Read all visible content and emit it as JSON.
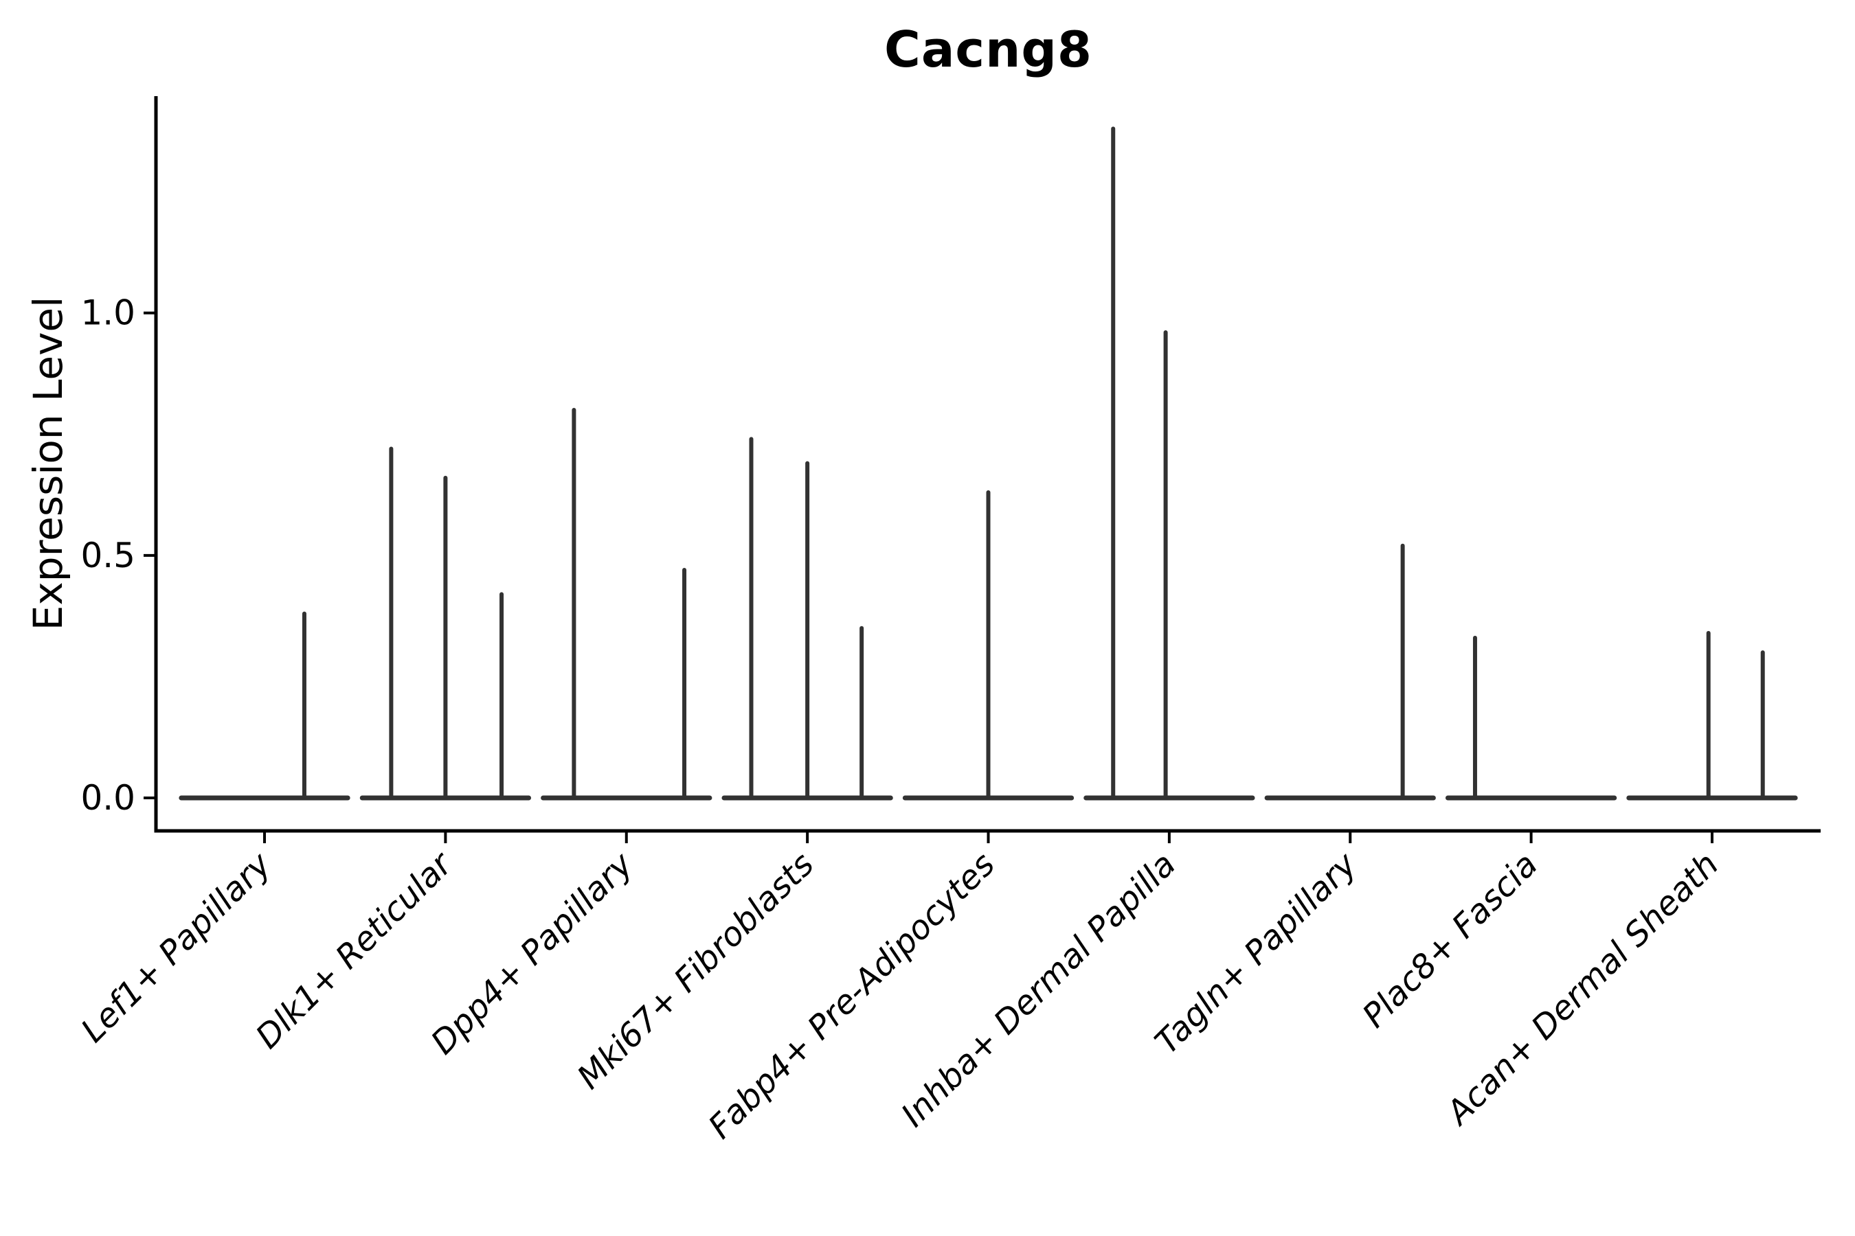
{
  "figure": {
    "title": "Cacng8",
    "ylabel": "Expression Level"
  },
  "chart_data": {
    "type": "violin",
    "title": "Cacng8",
    "xlabel": "",
    "ylabel": "Expression Level",
    "grid": false,
    "legend": null,
    "background": "#ffffff",
    "ylim": [
      -0.068,
      1.447
    ],
    "xlim": [
      0.4,
      9.6
    ],
    "yticks": [
      "0.0",
      "0.5",
      "1.0"
    ],
    "ytick_values": [
      0.0,
      0.5,
      1.0
    ],
    "categories": [
      "Lef1+ Papillary",
      "Dlk1+ Reticular",
      "Dpp4+ Papillary",
      "Mki67+ Fibroblasts",
      "Fabp4+ Pre-Adipocytes",
      "Inhba+ Dermal Papilla",
      "Tagln+ Papillary",
      "Plac8+ Fascia",
      "Acan+ Dermal Sheath"
    ],
    "violin_description": "Seurat-style violin plot; most cells at 0 so each violin collapses to a flat baseline at 0 plus thin needles up to the max expression value. offset is in category-width units from the category center.",
    "baseline_halfwidth": 0.46,
    "violins": [
      {
        "category": "Lef1+ Papillary",
        "needles": [
          {
            "offset": 0.22,
            "max": 0.38
          }
        ]
      },
      {
        "category": "Dlk1+ Reticular",
        "needles": [
          {
            "offset": -0.3,
            "max": 0.72
          },
          {
            "offset": 0.0,
            "max": 0.66
          },
          {
            "offset": 0.31,
            "max": 0.42
          }
        ]
      },
      {
        "category": "Dpp4+ Papillary",
        "needles": [
          {
            "offset": -0.29,
            "max": 0.8
          },
          {
            "offset": 0.32,
            "max": 0.47
          }
        ]
      },
      {
        "category": "Mki67+ Fibroblasts",
        "needles": [
          {
            "offset": -0.31,
            "max": 0.74
          },
          {
            "offset": 0.0,
            "max": 0.69
          },
          {
            "offset": 0.3,
            "max": 0.35
          }
        ]
      },
      {
        "category": "Fabp4+ Pre-Adipocytes",
        "needles": [
          {
            "offset": 0.0,
            "max": 0.63
          }
        ]
      },
      {
        "category": "Inhba+ Dermal Papilla",
        "needles": [
          {
            "offset": -0.31,
            "max": 1.38
          },
          {
            "offset": -0.02,
            "max": 0.96
          }
        ]
      },
      {
        "category": "Tagln+ Papillary",
        "needles": [
          {
            "offset": 0.29,
            "max": 0.52
          }
        ]
      },
      {
        "category": "Plac8+ Fascia",
        "needles": [
          {
            "offset": -0.31,
            "max": 0.33
          }
        ]
      },
      {
        "category": "Acan+ Dermal Sheath",
        "needles": [
          {
            "offset": -0.02,
            "max": 0.34
          },
          {
            "offset": 0.28,
            "max": 0.3
          }
        ]
      }
    ],
    "colors": {
      "violin": "#323232",
      "axis": "#000000",
      "text": "#000000",
      "background": "#ffffff"
    }
  }
}
